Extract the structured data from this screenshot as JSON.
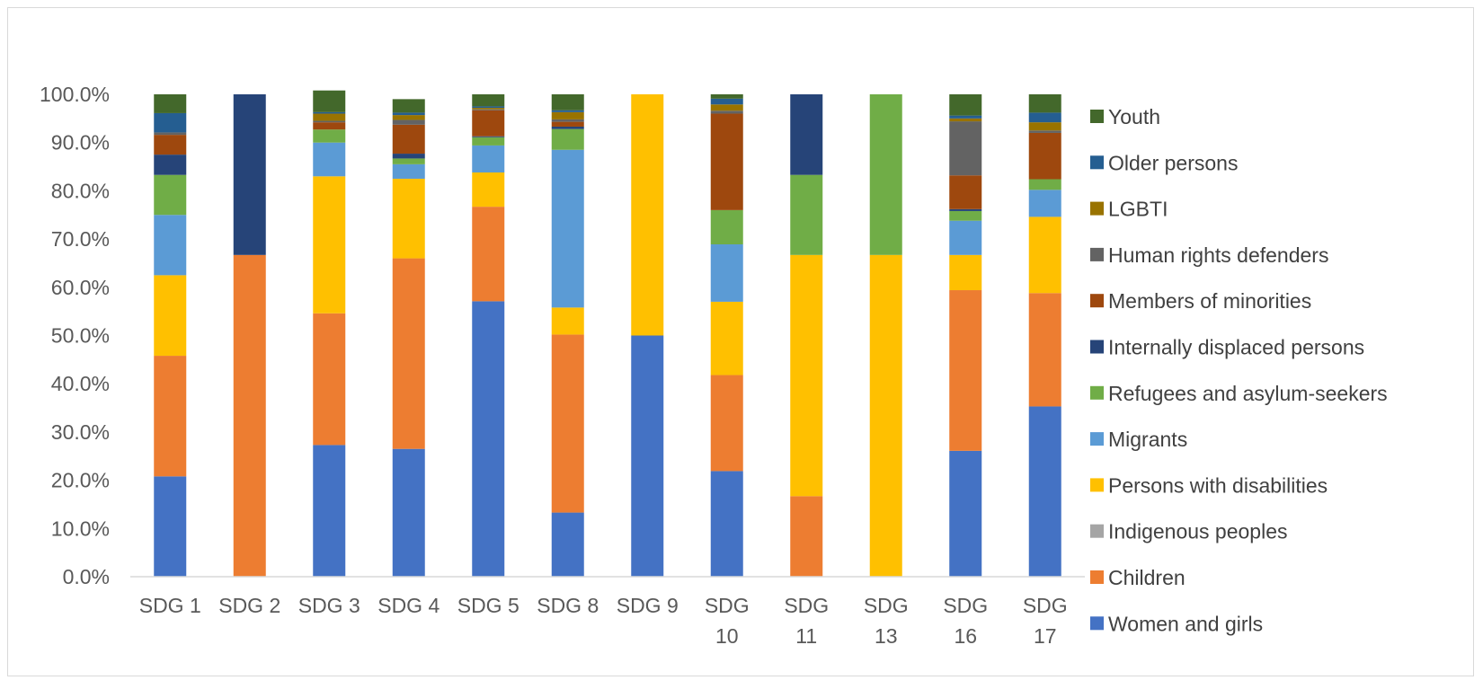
{
  "chart_data": {
    "type": "bar",
    "stacked": true,
    "percent": true,
    "title": "",
    "xlabel": "",
    "ylabel": "",
    "ylim": [
      0,
      100
    ],
    "y_ticks": [
      "0.0%",
      "10.0%",
      "20.0%",
      "30.0%",
      "40.0%",
      "50.0%",
      "60.0%",
      "70.0%",
      "80.0%",
      "90.0%",
      "100.0%"
    ],
    "grid": false,
    "legend_position": "right",
    "categories": [
      [
        "SDG 1"
      ],
      [
        "SDG 2"
      ],
      [
        "SDG 3"
      ],
      [
        "SDG 4"
      ],
      [
        "SDG 5"
      ],
      [
        "SDG 8"
      ],
      [
        "SDG 9"
      ],
      [
        "SDG",
        "10"
      ],
      [
        "SDG",
        "11"
      ],
      [
        "SDG",
        "13"
      ],
      [
        "SDG",
        "16"
      ],
      [
        "SDG",
        "17"
      ]
    ],
    "series": [
      {
        "name": "Women and girls",
        "color": "#4472C4",
        "values": [
          20.8,
          0,
          27.3,
          26.5,
          57.1,
          13.3,
          50.0,
          21.9,
          0,
          0,
          26.1,
          35.3
        ]
      },
      {
        "name": "Children",
        "color": "#ED7D31",
        "values": [
          25.0,
          66.7,
          27.3,
          39.5,
          19.6,
          36.9,
          0,
          19.9,
          16.7,
          0,
          33.3,
          23.5
        ]
      },
      {
        "name": "Indigenous peoples",
        "color": "#A5A5A5",
        "values": [
          0,
          0,
          0,
          0,
          0,
          0,
          0,
          0,
          0,
          0,
          0,
          0
        ]
      },
      {
        "name": "Persons with disabilities",
        "color": "#FFC000",
        "values": [
          16.7,
          0,
          28.4,
          16.5,
          7.1,
          5.6,
          50.0,
          15.2,
          50.0,
          66.7,
          7.3,
          15.8
        ]
      },
      {
        "name": "Migrants",
        "color": "#5B9BD5",
        "values": [
          12.5,
          0,
          7.0,
          3.0,
          5.6,
          32.7,
          0,
          11.9,
          0,
          0,
          7.1,
          5.6
        ]
      },
      {
        "name": "Refugees and asylum-seekers",
        "color": "#70AD47",
        "values": [
          8.3,
          0,
          2.7,
          1.2,
          1.7,
          4.3,
          0,
          7.1,
          16.6,
          33.3,
          2.0,
          2.2
        ]
      },
      {
        "name": "Internally displaced persons",
        "color": "#264478",
        "values": [
          4.2,
          33.3,
          0,
          1.0,
          0.2,
          0.5,
          0,
          0,
          16.7,
          0,
          0.4,
          0
        ]
      },
      {
        "name": "Members of minorities",
        "color": "#9E480E",
        "values": [
          4.1,
          0,
          1.5,
          6.0,
          5.4,
          1.0,
          0,
          20.0,
          0,
          0,
          7.0,
          9.6
        ]
      },
      {
        "name": "Human rights defenders",
        "color": "#636363",
        "values": [
          0.5,
          0,
          0.3,
          1.0,
          0.2,
          0.5,
          0,
          0.6,
          0,
          0,
          11.2,
          0.5
        ]
      },
      {
        "name": "LGBTI",
        "color": "#997300",
        "values": [
          0,
          0,
          1.5,
          1.0,
          0.3,
          1.5,
          0,
          1.3,
          0,
          0,
          0.6,
          1.7
        ]
      },
      {
        "name": "Older persons",
        "color": "#255E91",
        "values": [
          4.0,
          0,
          0.3,
          0.5,
          0.3,
          0.4,
          0,
          1.2,
          0,
          0,
          0.6,
          2.0
        ]
      },
      {
        "name": "Youth",
        "color": "#43682B",
        "values": [
          3.9,
          0,
          4.5,
          2.8,
          2.5,
          3.3,
          0,
          0.9,
          0,
          0,
          4.4,
          3.8
        ]
      }
    ]
  }
}
